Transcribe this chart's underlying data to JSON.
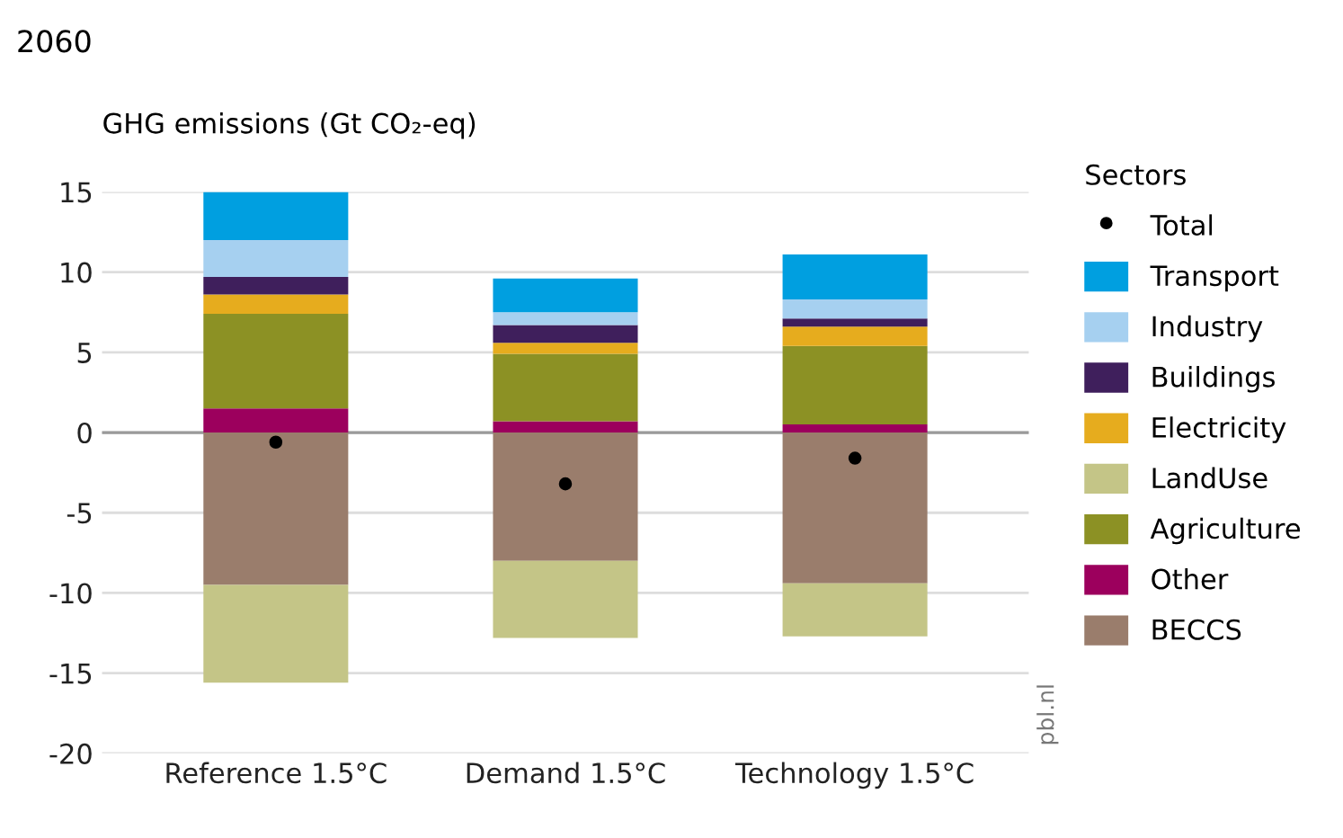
{
  "chart_data": {
    "type": "bar",
    "stacked": true,
    "title": "2060",
    "ylabel": "GHG emissions (Gt CO₂-eq)",
    "legend_title": "Sectors",
    "categories": [
      "Reference 1.5°C",
      "Demand 1.5°C",
      "Technology 1.5°C"
    ],
    "series": [
      {
        "name": "BECCS",
        "color": "#9a7d6c",
        "values": [
          -9.5,
          -8.0,
          -9.4
        ]
      },
      {
        "name": "Other",
        "color": "#9c005d",
        "values": [
          1.5,
          0.7,
          0.5
        ]
      },
      {
        "name": "Agriculture",
        "color": "#8c9124",
        "values": [
          5.9,
          4.2,
          4.9
        ]
      },
      {
        "name": "LandUse",
        "color": "#c4c587",
        "values": [
          -6.1,
          -4.8,
          -3.3
        ]
      },
      {
        "name": "Electricity",
        "color": "#e6ac1e",
        "values": [
          1.2,
          0.7,
          1.2
        ]
      },
      {
        "name": "Buildings",
        "color": "#3f1f5c",
        "values": [
          1.1,
          1.1,
          0.5
        ]
      },
      {
        "name": "Industry",
        "color": "#a6d0f0",
        "values": [
          2.3,
          0.8,
          1.2
        ]
      },
      {
        "name": "Transport",
        "color": "#009fe0",
        "values": [
          3.0,
          2.1,
          2.8
        ]
      },
      {
        "name": "Total",
        "type": "scatter",
        "color": "#000000",
        "x": [
          "Reference 1.5°C",
          "Demand 1.5°C",
          "Technology 1.5°C"
        ],
        "values": [
          -0.6,
          -3.2,
          -1.6
        ]
      }
    ],
    "ylim": [
      -20,
      15
    ],
    "yticks": [
      -20,
      -15,
      -10,
      -5,
      0,
      5,
      10,
      15
    ],
    "grid": "y",
    "legend": "right",
    "marker": "circle",
    "ref_lines": [
      {
        "axis": "y",
        "value": 0,
        "color": "#9a9a9a"
      }
    ],
    "annotations": [
      "pbl.nl"
    ]
  }
}
